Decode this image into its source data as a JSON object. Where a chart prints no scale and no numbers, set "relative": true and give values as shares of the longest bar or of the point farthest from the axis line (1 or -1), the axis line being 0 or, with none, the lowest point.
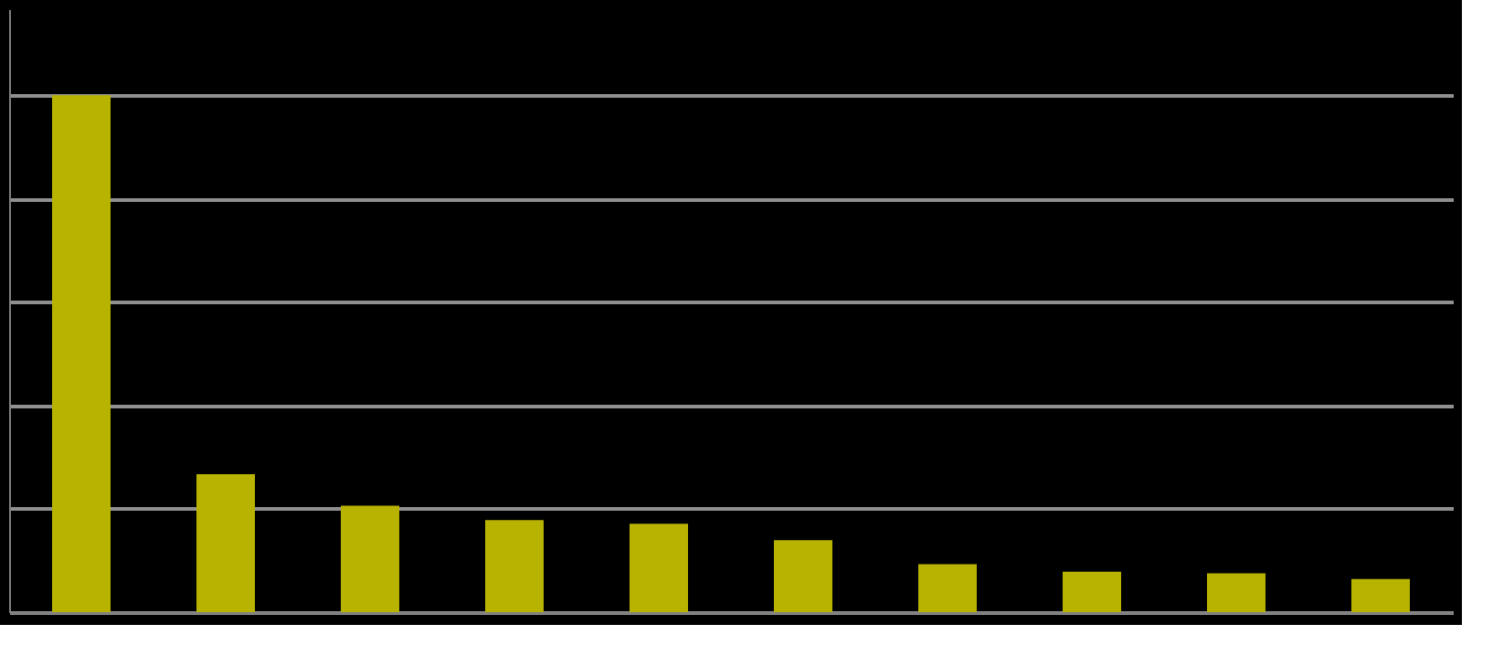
{
  "chart_data": {
    "type": "bar",
    "relative": true,
    "categories": [
      null,
      null,
      null,
      null,
      null,
      null,
      null,
      null,
      null,
      null
    ],
    "series": [
      {
        "color": "#b8b300",
        "values": [
          1,
          0.267,
          0.206,
          0.178,
          0.171,
          0.139,
          0.093,
          0.078,
          0.075,
          0.064
        ]
      }
    ],
    "grid": true,
    "legend": false
  }
}
